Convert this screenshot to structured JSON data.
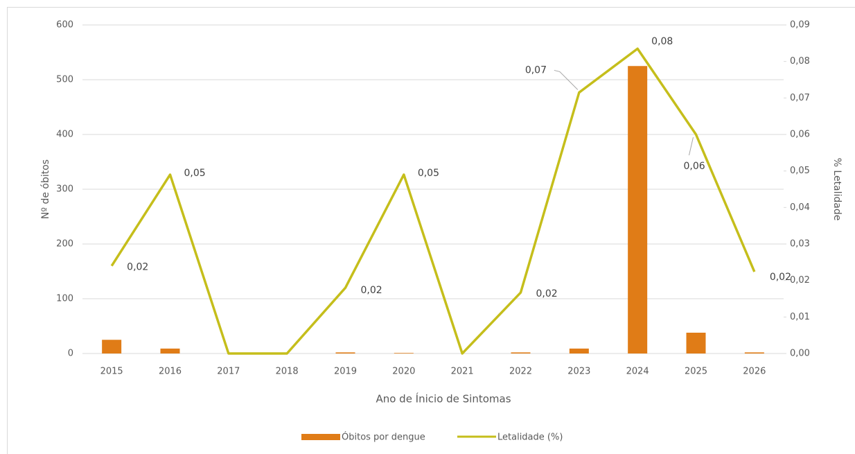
{
  "chart_data": {
    "type": "bar_line",
    "x_label": "Ano de Ínicio de Sintomas",
    "y_label": "Nº de óbitos",
    "y2_label": "% Letalidade",
    "categories": [
      "2015",
      "2016",
      "2017",
      "2018",
      "2019",
      "2020",
      "2021",
      "2022",
      "2023",
      "2024",
      "2025",
      "2026"
    ],
    "series": [
      {
        "name": "Óbitos por dengue",
        "type": "bar",
        "color": "#e07c17",
        "values": [
          25,
          9,
          0,
          0,
          2,
          1,
          0,
          2,
          9,
          525,
          38,
          2
        ]
      },
      {
        "name": "Letalidade (%)",
        "type": "line",
        "axis": "y2",
        "color": "#c5be1b",
        "values": [
          0.024,
          0.049,
          0,
          0,
          0.018,
          0.049,
          0,
          0.0167,
          0.0715,
          0.0835,
          0.06,
          0.0224
        ],
        "value_labels": [
          "0,02",
          "0,05",
          null,
          null,
          "0,02",
          "0,05",
          null,
          "0,02",
          "0,07",
          "0,08",
          "0,06",
          "0,02"
        ]
      }
    ],
    "ylim": [
      0,
      600
    ],
    "yticks": [
      0,
      100,
      200,
      300,
      400,
      500,
      600
    ],
    "y2lim": [
      0,
      0.09
    ],
    "y2ticks": [
      {
        "value": 0,
        "label": "0,00"
      },
      {
        "value": 0.01,
        "label": "0,01"
      },
      {
        "value": 0.02,
        "label": "0,02"
      },
      {
        "value": 0.03,
        "label": "0,03"
      },
      {
        "value": 0.04,
        "label": "0,04"
      },
      {
        "value": 0.05,
        "label": "0,05"
      },
      {
        "value": 0.06,
        "label": "0,06"
      },
      {
        "value": 0.07,
        "label": "0,07"
      },
      {
        "value": 0.08,
        "label": "0,08"
      },
      {
        "value": 0.09,
        "label": "0,09"
      }
    ],
    "grid": true,
    "legend": "bottom"
  }
}
